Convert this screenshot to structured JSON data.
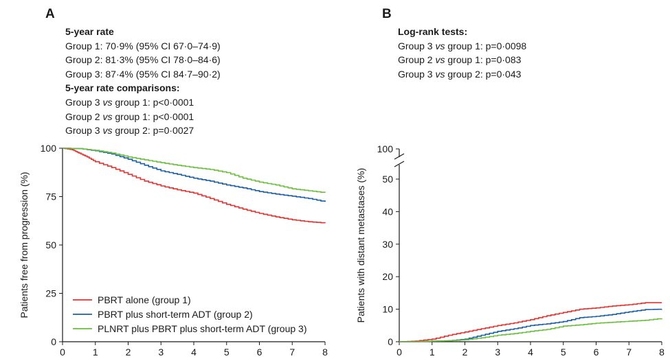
{
  "colors": {
    "group1": "#e8312c",
    "group2": "#1a5fa8",
    "group3": "#6abf3b",
    "axis": "#1a1a1a"
  },
  "chart_data": [
    {
      "type": "line",
      "panel": "A",
      "stats": {
        "heading1": "5-year rate",
        "rates": [
          "Group 1: 70·9% (95% CI 67·0–74·9)",
          "Group 2: 81·3% (95% CI 78·0–84·6)",
          "Group 3: 87·4% (95% CI 84·7–90·2)"
        ],
        "heading2": "5-year rate comparisons:",
        "comparisons": [
          {
            "a": "Group 3",
            "vs": "vs",
            "b": "group 1: p<0·0001"
          },
          {
            "a": "Group 2",
            "vs": "vs",
            "b": "group 1: p<0·0001"
          },
          {
            "a": "Group 3",
            "vs": "vs",
            "b": "group 2: p=0·0027"
          }
        ]
      },
      "ylabel": "Patients free from progression  (%)",
      "xlim": [
        0,
        8
      ],
      "ylim": [
        0,
        100
      ],
      "x_ticks": [
        "0",
        "1",
        "2",
        "3",
        "4",
        "5",
        "6",
        "7",
        "8"
      ],
      "y_ticks": [
        "0",
        "25",
        "50",
        "75",
        "100"
      ],
      "legend_position": "bottom-left",
      "series": [
        {
          "name": "PBRT alone (group 1)",
          "color": "#e8312c",
          "x": [
            0,
            0.3,
            0.5,
            0.75,
            1,
            1.5,
            2,
            2.5,
            3,
            3.5,
            4,
            4.5,
            5,
            5.5,
            6,
            6.5,
            7,
            7.5,
            8
          ],
          "y": [
            100,
            99.2,
            97.5,
            95.5,
            93,
            90,
            86.5,
            83,
            80.5,
            78.5,
            76.8,
            74,
            71,
            68.5,
            66.3,
            64.5,
            63,
            62,
            61.3
          ]
        },
        {
          "name": "PBRT plus short-term ADT (group 2)",
          "color": "#1a5fa8",
          "x": [
            0,
            0.5,
            1,
            1.5,
            2,
            2.5,
            3,
            3.5,
            4,
            4.5,
            5,
            5.5,
            6,
            6.5,
            7,
            7.5,
            8
          ],
          "y": [
            100,
            99.8,
            98.7,
            97,
            94.3,
            91.2,
            88.3,
            86.5,
            84.5,
            83,
            81,
            79.5,
            77.6,
            76.3,
            75.2,
            74,
            72.3
          ]
        },
        {
          "name": "PLNRT plus PBRT plus short-term ADT (group 3)",
          "color": "#6abf3b",
          "x": [
            0,
            0.5,
            1,
            1.5,
            2,
            2.5,
            3,
            3.5,
            4,
            4.5,
            5,
            5.5,
            6,
            6.5,
            7,
            7.5,
            8
          ],
          "y": [
            100,
            99.8,
            98.9,
            97.5,
            95.5,
            94,
            92.5,
            91.2,
            90,
            89,
            87.4,
            84.5,
            82.5,
            81,
            79,
            78,
            77
          ]
        }
      ]
    },
    {
      "type": "line",
      "panel": "B",
      "stats": {
        "heading1": "Log-rank tests:",
        "comparisons": [
          {
            "a": "Group 3",
            "vs": "vs",
            "b": "group 1: p=0·0098"
          },
          {
            "a": "Group 2",
            "vs": "vs",
            "b": "group 1: p=0·083"
          },
          {
            "a": "Group 3",
            "vs": "vs",
            "b": "group 2: p=0·043"
          }
        ]
      },
      "ylabel": "Patients with distant metastases  (%)",
      "xlim": [
        0,
        8
      ],
      "ylim": [
        0,
        55
      ],
      "axis_break": true,
      "x_ticks": [
        "0",
        "1",
        "2",
        "3",
        "4",
        "5",
        "6",
        "7",
        "8"
      ],
      "y_ticks": [
        "0",
        "10",
        "20",
        "30",
        "40",
        "50"
      ],
      "y_top_tick": "100",
      "series": [
        {
          "name": "PBRT alone (group 1)",
          "color": "#e8312c",
          "x": [
            0,
            0.5,
            1,
            1.5,
            2,
            2.5,
            3,
            3.5,
            4,
            4.5,
            5,
            5.5,
            6,
            6.5,
            7,
            7.5,
            8
          ],
          "y": [
            0,
            0.2,
            0.8,
            2,
            3,
            4,
            5,
            5.8,
            6.8,
            8,
            9,
            10,
            10.4,
            11,
            11.4,
            12,
            12
          ]
        },
        {
          "name": "PBRT plus short-term ADT (group 2)",
          "color": "#1a5fa8",
          "x": [
            0,
            0.5,
            1,
            1.5,
            2,
            2.5,
            3,
            3.5,
            4,
            4.5,
            5,
            5.5,
            6,
            6.5,
            7,
            7.5,
            8
          ],
          "y": [
            0,
            0,
            0.2,
            0.3,
            0.8,
            2,
            3.2,
            4,
            5,
            5.5,
            6.2,
            7.4,
            7.8,
            8.4,
            9.2,
            9.9,
            10
          ]
        },
        {
          "name": "PLNRT plus PBRT plus short-term ADT (group 3)",
          "color": "#6abf3b",
          "x": [
            0,
            0.5,
            1,
            1.5,
            2,
            2.5,
            3,
            3.5,
            4,
            4.5,
            5,
            5.5,
            6,
            6.5,
            7,
            7.5,
            8
          ],
          "y": [
            0,
            0,
            0.2,
            0.3,
            0.6,
            1.2,
            2,
            2.5,
            3.2,
            3.8,
            4.8,
            5.2,
            5.7,
            6,
            6.3,
            6.6,
            7.2
          ]
        }
      ]
    }
  ]
}
